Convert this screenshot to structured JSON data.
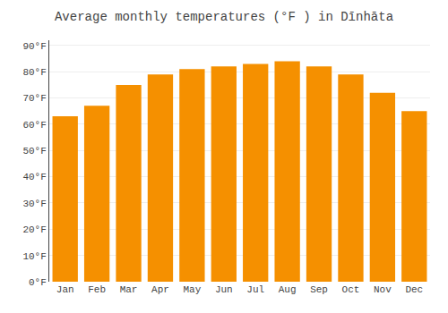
{
  "chart_data": {
    "type": "bar",
    "title": "Average monthly temperatures (°F ) in Dīnhāta",
    "categories": [
      "Jan",
      "Feb",
      "Mar",
      "Apr",
      "May",
      "Jun",
      "Jul",
      "Aug",
      "Sep",
      "Oct",
      "Nov",
      "Dec"
    ],
    "values": [
      63,
      67,
      75,
      79,
      81,
      82,
      83,
      84,
      82,
      79,
      72,
      65
    ],
    "color": "#F59000",
    "ylim": [
      0,
      92
    ],
    "yticks": [
      {
        "value": 0,
        "label": "0°F"
      },
      {
        "value": 10,
        "label": "10°F"
      },
      {
        "value": 20,
        "label": "20°F"
      },
      {
        "value": 30,
        "label": "30°F"
      },
      {
        "value": 40,
        "label": "40°F"
      },
      {
        "value": 50,
        "label": "50°F"
      },
      {
        "value": 60,
        "label": "60°F"
      },
      {
        "value": 70,
        "label": "70°F"
      },
      {
        "value": 80,
        "label": "80°F"
      },
      {
        "value": 90,
        "label": "90°F"
      }
    ],
    "grid": true
  }
}
